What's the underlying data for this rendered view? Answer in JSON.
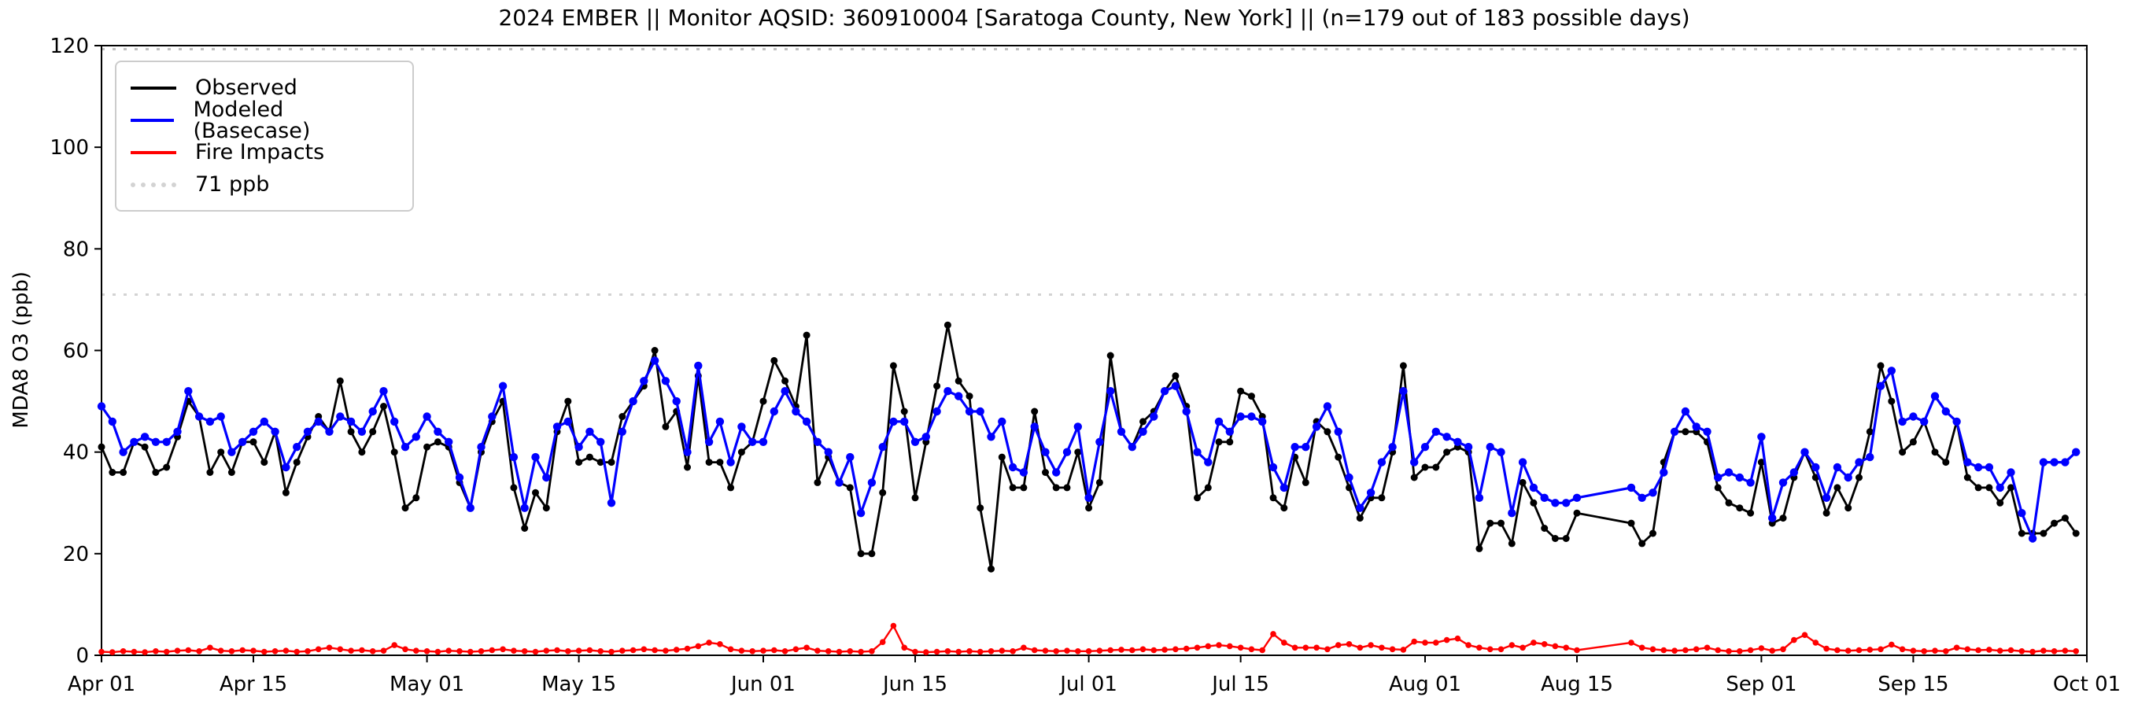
{
  "title": "2024 EMBER || Monitor AQSID: 360910004 [Saratoga County, New York] || (n=179 out of 183 possible days)",
  "axes": {
    "ylabel": "MDA8 O3 (ppb)",
    "yticks": [
      0,
      20,
      40,
      60,
      80,
      100,
      120
    ],
    "ylim": [
      0,
      120
    ],
    "xtick_labels": [
      "Apr 01",
      "Apr 15",
      "May 01",
      "May 15",
      "Jun 01",
      "Jun 15",
      "Jul 01",
      "Jul 15",
      "Aug 01",
      "Aug 15",
      "Sep 01",
      "Sep 15",
      "Oct 01"
    ],
    "xtick_days": [
      0,
      14,
      30,
      44,
      61,
      75,
      91,
      105,
      122,
      136,
      153,
      167,
      183
    ],
    "x_axis_days": 183,
    "grid": false,
    "frame": "full-box"
  },
  "legend": [
    {
      "label": "Observed",
      "color": "#000000",
      "style": "solid"
    },
    {
      "label": "Modeled (Basecase)",
      "color": "#0000ff",
      "style": "solid"
    },
    {
      "label": "Fire Impacts",
      "color": "#ff0000",
      "style": "solid"
    },
    {
      "label": "71 ppb",
      "color": "#d3d3d3",
      "style": "dotted"
    }
  ],
  "chart_data": {
    "type": "line",
    "title": "2024 EMBER || Monitor AQSID: 360910004 [Saratoga County, New York] || (n=179 out of 183 possible days)",
    "xlabel": "",
    "ylabel": "MDA8 O3 (ppb)",
    "ylim": [
      0,
      120
    ],
    "legend_position": "upper left",
    "x_range": {
      "start": "Apr 01",
      "end": "Sep 30",
      "step": "1 day",
      "n_possible_days": 183,
      "n_observed_days": 179
    },
    "missing_dates": [
      "Aug 16",
      "Aug 17",
      "Aug 18",
      "Aug 19"
    ],
    "reference_lines": [
      {
        "label": "71 ppb",
        "value": 71,
        "color": "#d3d3d3",
        "style": "dotted"
      },
      {
        "label": "",
        "value": 119.5,
        "color": "#c0c0c0",
        "style": "dotted"
      }
    ],
    "series": [
      {
        "name": "Observed",
        "color": "#000000",
        "marker_radius": 4.5,
        "line_width": 2.8,
        "values": [
          41,
          36,
          36,
          42,
          41,
          36,
          37,
          43,
          50,
          47,
          36,
          40,
          36,
          42,
          42,
          38,
          44,
          32,
          38,
          43,
          47,
          44,
          54,
          44,
          40,
          44,
          49,
          40,
          29,
          31,
          41,
          42,
          41,
          34,
          29,
          40,
          46,
          50,
          33,
          25,
          32,
          29,
          44,
          50,
          38,
          39,
          38,
          38,
          47,
          50,
          53,
          60,
          45,
          48,
          37,
          55,
          38,
          38,
          33,
          40,
          42,
          50,
          58,
          54,
          49,
          63,
          34,
          39,
          34,
          33,
          20,
          20,
          32,
          57,
          48,
          31,
          42,
          53,
          65,
          54,
          51,
          29,
          17,
          39,
          33,
          33,
          48,
          36,
          33,
          33,
          40,
          29,
          34,
          59,
          44,
          41,
          46,
          48,
          52,
          55,
          49,
          31,
          33,
          42,
          42,
          52,
          51,
          47,
          31,
          29,
          39,
          34,
          46,
          44,
          39,
          33,
          27,
          31,
          31,
          40,
          57,
          35,
          37,
          37,
          40,
          41,
          40,
          21,
          26,
          26,
          22,
          34,
          30,
          25,
          23,
          23,
          28,
          null,
          null,
          null,
          null,
          26,
          22,
          24,
          38,
          44,
          44,
          44,
          42,
          33,
          30,
          29,
          28,
          38,
          26,
          27,
          35,
          40,
          35,
          28,
          33,
          29,
          35,
          44,
          57,
          50,
          40,
          42,
          46,
          40,
          38,
          46,
          35,
          33,
          33,
          30,
          33,
          24,
          24,
          24,
          26,
          27,
          24
        ]
      },
      {
        "name": "Modeled (Basecase)",
        "color": "#0000ff",
        "marker_radius": 5.2,
        "line_width": 3.2,
        "values": [
          49,
          46,
          40,
          42,
          43,
          42,
          42,
          44,
          52,
          47,
          46,
          47,
          40,
          42,
          44,
          46,
          44,
          37,
          41,
          44,
          46,
          44,
          47,
          46,
          44,
          48,
          52,
          46,
          41,
          43,
          47,
          44,
          42,
          35,
          29,
          41,
          47,
          53,
          39,
          29,
          39,
          35,
          45,
          46,
          41,
          44,
          42,
          30,
          44,
          50,
          54,
          58,
          54,
          50,
          40,
          57,
          42,
          46,
          38,
          45,
          42,
          42,
          48,
          52,
          48,
          46,
          42,
          40,
          34,
          39,
          28,
          34,
          41,
          46,
          46,
          42,
          43,
          48,
          52,
          51,
          48,
          48,
          43,
          46,
          37,
          36,
          45,
          40,
          36,
          40,
          45,
          31,
          42,
          52,
          44,
          41,
          44,
          47,
          52,
          53,
          48,
          40,
          38,
          46,
          44,
          47,
          47,
          46,
          37,
          33,
          41,
          41,
          45,
          49,
          44,
          35,
          29,
          32,
          38,
          41,
          52,
          38,
          41,
          44,
          43,
          42,
          41,
          31,
          41,
          40,
          28,
          38,
          33,
          31,
          30,
          30,
          31,
          null,
          null,
          null,
          null,
          33,
          31,
          32,
          36,
          44,
          48,
          45,
          44,
          35,
          36,
          35,
          34,
          43,
          27,
          34,
          36,
          40,
          37,
          31,
          37,
          35,
          38,
          39,
          53,
          56,
          46,
          47,
          46,
          51,
          48,
          46,
          38,
          37,
          37,
          33,
          36,
          28,
          23,
          38,
          38,
          38,
          40
        ]
      },
      {
        "name": "Fire Impacts",
        "color": "#ff0000",
        "marker_radius": 3.8,
        "line_width": 2.4,
        "values": [
          0.7,
          0.6,
          0.8,
          0.7,
          0.6,
          0.8,
          0.7,
          0.9,
          1.0,
          0.8,
          1.5,
          0.9,
          0.8,
          1.0,
          0.9,
          0.7,
          0.8,
          0.9,
          0.7,
          0.8,
          1.2,
          1.5,
          1.2,
          0.9,
          1.0,
          0.8,
          0.9,
          2.0,
          1.2,
          0.9,
          0.8,
          0.7,
          0.9,
          0.8,
          0.7,
          0.8,
          1.0,
          1.2,
          0.9,
          0.8,
          0.7,
          0.9,
          1.0,
          0.8,
          0.9,
          1.0,
          0.8,
          0.7,
          0.9,
          1.0,
          1.2,
          1.0,
          0.9,
          1.1,
          1.3,
          1.8,
          2.5,
          2.2,
          1.2,
          0.9,
          0.8,
          0.9,
          1.0,
          0.8,
          1.2,
          1.5,
          0.9,
          0.8,
          0.7,
          0.8,
          0.7,
          0.8,
          2.6,
          5.8,
          1.5,
          0.7,
          0.6,
          0.7,
          0.8,
          0.7,
          0.8,
          0.7,
          0.8,
          0.9,
          0.8,
          1.5,
          1.0,
          0.9,
          0.8,
          0.9,
          0.8,
          0.8,
          0.9,
          1.0,
          1.1,
          1.0,
          1.2,
          1.0,
          1.1,
          1.2,
          1.3,
          1.5,
          1.8,
          2.0,
          1.8,
          1.5,
          1.2,
          1.0,
          4.2,
          2.5,
          1.5,
          1.5,
          1.5,
          1.2,
          2.0,
          2.2,
          1.5,
          2.0,
          1.5,
          1.2,
          1.1,
          2.7,
          2.5,
          2.5,
          3.0,
          3.3,
          2.0,
          1.5,
          1.2,
          1.2,
          2.0,
          1.5,
          2.5,
          2.2,
          1.8,
          1.5,
          1.0,
          null,
          null,
          null,
          null,
          2.5,
          1.5,
          1.2,
          1.0,
          0.9,
          1.0,
          1.2,
          1.5,
          1.0,
          0.8,
          0.8,
          1.0,
          1.4,
          0.9,
          1.2,
          3.0,
          4.0,
          2.5,
          1.3,
          1.0,
          0.9,
          1.0,
          1.1,
          1.2,
          2.1,
          1.2,
          0.9,
          0.8,
          0.9,
          0.8,
          1.5,
          1.2,
          1.0,
          1.1,
          0.9,
          1.0,
          0.8,
          0.7,
          0.9,
          0.8,
          0.9,
          0.8
        ]
      }
    ]
  }
}
